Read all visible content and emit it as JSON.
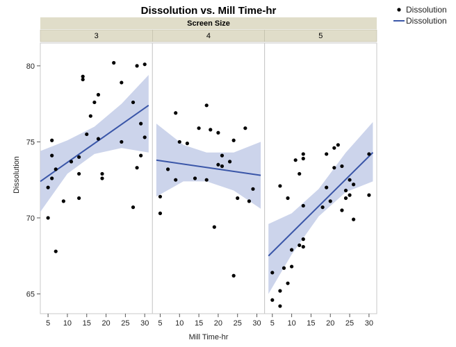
{
  "chart_data": {
    "type": "scatter",
    "title": "Dissolution vs. Mill Time-hr",
    "facet_title": "Screen Size",
    "xlabel": "Mill Time-hr",
    "ylabel": "Dissolution",
    "xlim": [
      3,
      32
    ],
    "ylim": [
      63.7,
      81.5
    ],
    "xticks": [
      5,
      10,
      15,
      20,
      25,
      30
    ],
    "yticks": [
      65,
      70,
      75,
      80
    ],
    "legend": {
      "position": "top-right",
      "entries": [
        {
          "label": "Dissolution",
          "kind": "point"
        },
        {
          "label": "Dissolution",
          "kind": "line"
        }
      ]
    },
    "colors": {
      "points": "#000000",
      "fit_line": "#3a56a8",
      "band": "#c3cde8",
      "strip": "#e0ddc9"
    },
    "panels": [
      {
        "label": "3",
        "points": [
          [
            5,
            70.0
          ],
          [
            5,
            72.0
          ],
          [
            6,
            72.6
          ],
          [
            6,
            74.1
          ],
          [
            6,
            75.1
          ],
          [
            7,
            67.8
          ],
          [
            7,
            73.2
          ],
          [
            9,
            71.1
          ],
          [
            11,
            73.7
          ],
          [
            13,
            71.3
          ],
          [
            13,
            72.9
          ],
          [
            13,
            74.0
          ],
          [
            14,
            79.3
          ],
          [
            14,
            79.1
          ],
          [
            15,
            75.5
          ],
          [
            16,
            76.7
          ],
          [
            17,
            77.6
          ],
          [
            18,
            78.1
          ],
          [
            18,
            75.2
          ],
          [
            19,
            72.6
          ],
          [
            19,
            72.9
          ],
          [
            22,
            80.2
          ],
          [
            24,
            78.9
          ],
          [
            24,
            75.0
          ],
          [
            27,
            70.7
          ],
          [
            27,
            77.6
          ],
          [
            28,
            73.3
          ],
          [
            28,
            80.0
          ],
          [
            29,
            74.1
          ],
          [
            29,
            76.2
          ],
          [
            30,
            80.1
          ],
          [
            30,
            75.3
          ]
        ],
        "fit": {
          "x": [
            3,
            31
          ],
          "y": [
            72.4,
            77.4
          ]
        },
        "band": [
          {
            "x": 3,
            "lo": 70.4,
            "hi": 74.4
          },
          {
            "x": 10,
            "lo": 72.9,
            "hi": 75.1
          },
          {
            "x": 17,
            "lo": 74.2,
            "hi": 76.0
          },
          {
            "x": 24,
            "lo": 74.6,
            "hi": 77.5
          },
          {
            "x": 31,
            "lo": 74.3,
            "hi": 79.4
          }
        ]
      },
      {
        "label": "4",
        "points": [
          [
            5,
            71.4
          ],
          [
            5,
            70.3
          ],
          [
            7,
            73.2
          ],
          [
            9,
            72.5
          ],
          [
            9,
            76.9
          ],
          [
            10,
            75.0
          ],
          [
            12,
            74.9
          ],
          [
            14,
            72.6
          ],
          [
            15,
            75.9
          ],
          [
            17,
            77.4
          ],
          [
            17,
            72.5
          ],
          [
            18,
            75.8
          ],
          [
            19,
            69.4
          ],
          [
            20,
            75.6
          ],
          [
            20,
            73.5
          ],
          [
            21,
            73.4
          ],
          [
            21,
            74.1
          ],
          [
            23,
            73.7
          ],
          [
            24,
            75.1
          ],
          [
            24,
            66.2
          ],
          [
            25,
            71.3
          ],
          [
            27,
            75.9
          ],
          [
            28,
            71.1
          ],
          [
            29,
            71.9
          ]
        ],
        "fit": {
          "x": [
            4,
            31
          ],
          "y": [
            73.8,
            72.8
          ]
        },
        "band": [
          {
            "x": 4,
            "lo": 71.4,
            "hi": 76.2
          },
          {
            "x": 11,
            "lo": 72.4,
            "hi": 74.8
          },
          {
            "x": 17,
            "lo": 72.4,
            "hi": 74.3
          },
          {
            "x": 24,
            "lo": 71.8,
            "hi": 74.3
          },
          {
            "x": 31,
            "lo": 70.6,
            "hi": 75.0
          }
        ]
      },
      {
        "label": "5",
        "points": [
          [
            5,
            66.4
          ],
          [
            5,
            64.6
          ],
          [
            7,
            64.2
          ],
          [
            7,
            65.2
          ],
          [
            7,
            72.1
          ],
          [
            8,
            66.7
          ],
          [
            9,
            71.3
          ],
          [
            9,
            65.7
          ],
          [
            10,
            66.8
          ],
          [
            10,
            67.9
          ],
          [
            11,
            73.8
          ],
          [
            12,
            72.9
          ],
          [
            12,
            68.2
          ],
          [
            13,
            73.9
          ],
          [
            13,
            74.2
          ],
          [
            13,
            68.6
          ],
          [
            13,
            70.8
          ],
          [
            13,
            68.1
          ],
          [
            18,
            70.7
          ],
          [
            19,
            72.0
          ],
          [
            19,
            74.2
          ],
          [
            20,
            71.1
          ],
          [
            21,
            73.3
          ],
          [
            21,
            74.6
          ],
          [
            22,
            74.8
          ],
          [
            23,
            70.5
          ],
          [
            23,
            73.4
          ],
          [
            24,
            71.8
          ],
          [
            24,
            71.3
          ],
          [
            25,
            72.5
          ],
          [
            25,
            71.5
          ],
          [
            26,
            69.9
          ],
          [
            26,
            72.2
          ],
          [
            30,
            74.2
          ],
          [
            30,
            71.5
          ]
        ],
        "fit": {
          "x": [
            4,
            31
          ],
          "y": [
            67.5,
            74.3
          ]
        },
        "band": [
          {
            "x": 4,
            "lo": 65.0,
            "hi": 69.6
          },
          {
            "x": 10,
            "lo": 67.6,
            "hi": 70.3
          },
          {
            "x": 17,
            "lo": 70.1,
            "hi": 71.9
          },
          {
            "x": 24,
            "lo": 71.7,
            "hi": 74.3
          },
          {
            "x": 31,
            "lo": 72.4,
            "hi": 76.3
          }
        ]
      }
    ]
  }
}
